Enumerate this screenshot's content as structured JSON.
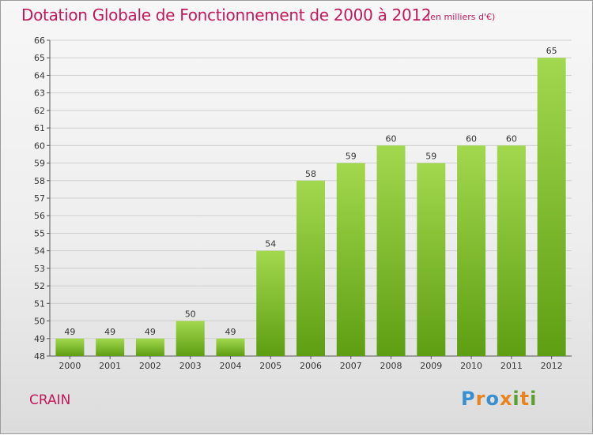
{
  "header": {
    "title": "Dotation Globale de Fonctionnement de 2000 à 2012",
    "unit": "(en milliers d'€)"
  },
  "footer": {
    "commune": "CRAIN",
    "logo_text": "Proxiti"
  },
  "colors": {
    "title": "#c2185b",
    "bar_top": "#a2d84e",
    "bar_bottom": "#5e9e12",
    "grid": "#cfcfcf"
  },
  "chart_data": {
    "type": "bar",
    "title": "Dotation Globale de Fonctionnement de 2000 à 2012",
    "subtitle": "(en milliers d'€)",
    "xlabel": "",
    "ylabel": "",
    "categories": [
      "2000",
      "2001",
      "2002",
      "2003",
      "2004",
      "2005",
      "2006",
      "2007",
      "2008",
      "2009",
      "2010",
      "2011",
      "2012"
    ],
    "values": [
      49,
      49,
      49,
      50,
      49,
      54,
      58,
      59,
      60,
      59,
      60,
      60,
      65
    ],
    "ylim": [
      48,
      66
    ],
    "yticks": [
      48,
      49,
      50,
      51,
      52,
      53,
      54,
      55,
      56,
      57,
      58,
      59,
      60,
      61,
      62,
      63,
      64,
      65,
      66
    ],
    "grid": true,
    "legend": "none"
  }
}
